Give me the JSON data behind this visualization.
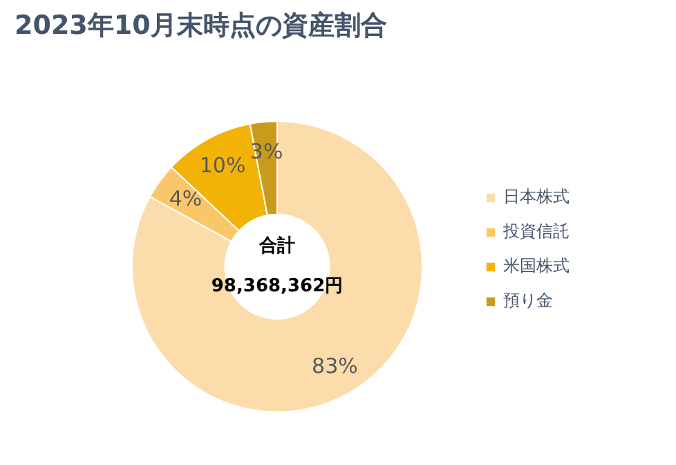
{
  "chart_data": {
    "type": "donut",
    "title": "2023年10月末時点の資産割合",
    "categories": [
      "日本株式",
      "投資信託",
      "米国株式",
      "預り金"
    ],
    "values": [
      83,
      4,
      10,
      3
    ],
    "colors": [
      "#fbdcaa",
      "#f9c76a",
      "#f2b206",
      "#c99b1c"
    ],
    "value_labels": [
      "83%",
      "4%",
      "10%",
      "3%"
    ],
    "annotations": [
      "合計",
      "98,368,362円"
    ],
    "legend": "right"
  }
}
